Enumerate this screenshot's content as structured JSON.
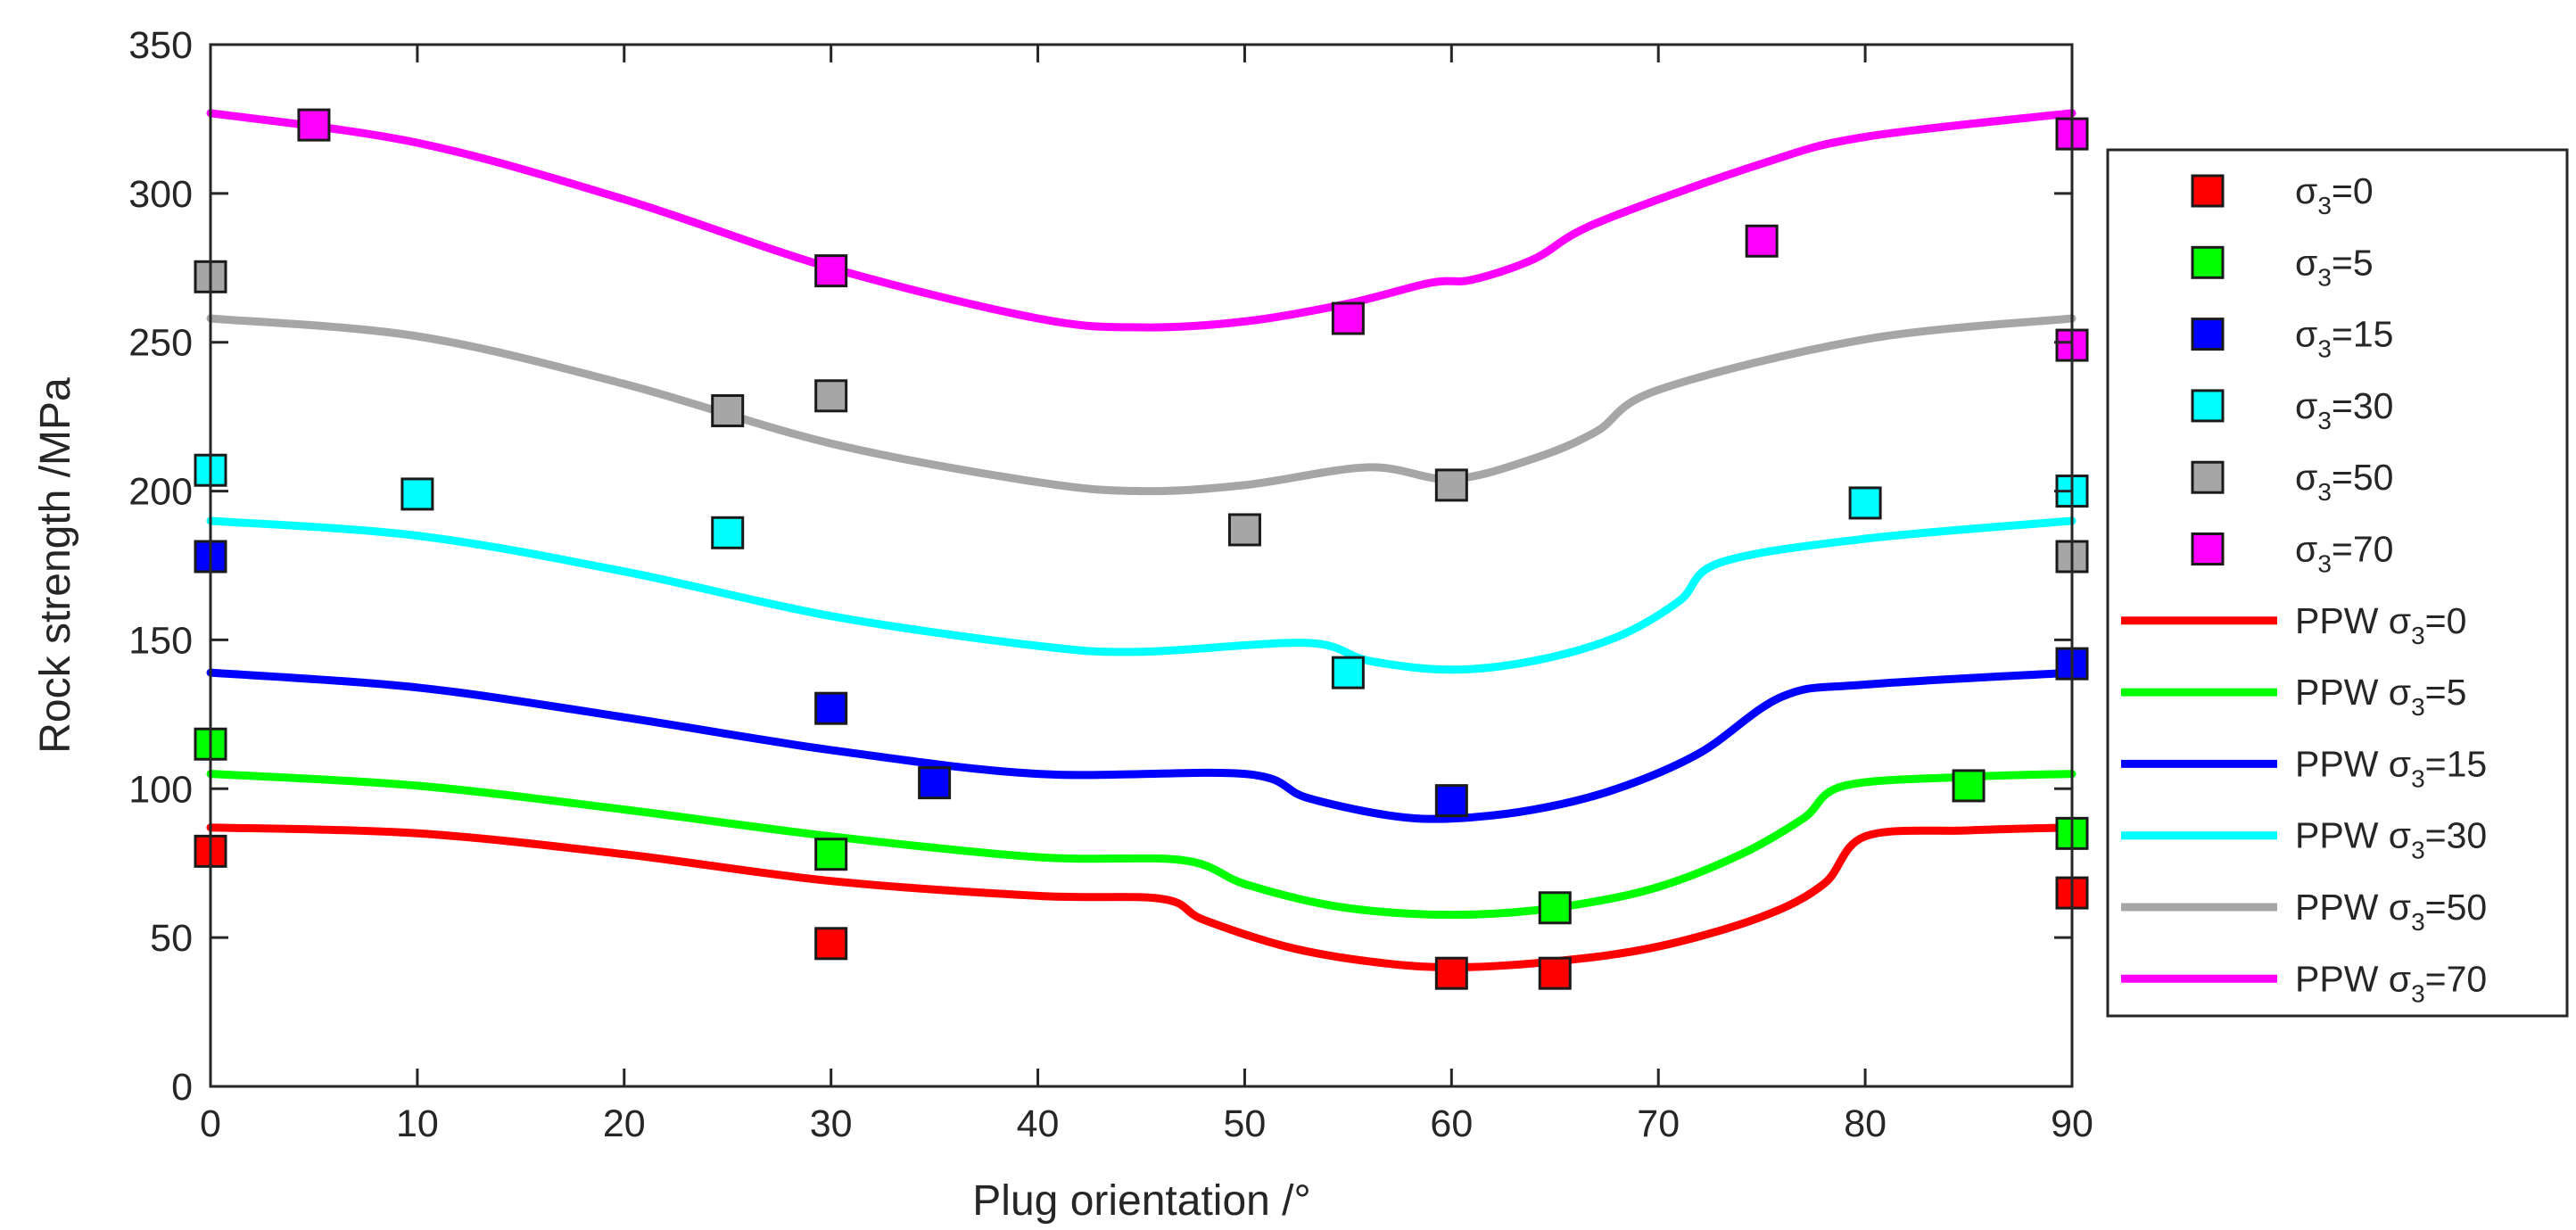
{
  "chart_data": {
    "type": "scatter+line",
    "xlabel": "Plug orientation /°",
    "ylabel": "Rock strength /MPa",
    "xlim": [
      0,
      90
    ],
    "ylim": [
      0,
      350
    ],
    "xticks": [
      0,
      10,
      20,
      30,
      40,
      50,
      60,
      70,
      80,
      90
    ],
    "yticks": [
      0,
      50,
      100,
      150,
      200,
      250,
      300,
      350
    ],
    "grid": false,
    "legend_position": "right-outside",
    "scatter_series": [
      {
        "name": "σ3=0",
        "legend_base": "σ",
        "legend_sub": "3",
        "legend_tail": "=0",
        "color": "#ff0000",
        "points": [
          [
            0,
            79
          ],
          [
            30,
            48
          ],
          [
            60,
            38
          ],
          [
            65,
            38
          ],
          [
            90,
            65
          ]
        ]
      },
      {
        "name": "σ3=5",
        "legend_base": "σ",
        "legend_sub": "3",
        "legend_tail": "=5",
        "color": "#00ff00",
        "points": [
          [
            0,
            115
          ],
          [
            30,
            78
          ],
          [
            65,
            60
          ],
          [
            85,
            101
          ],
          [
            90,
            85
          ]
        ]
      },
      {
        "name": "σ3=15",
        "legend_base": "σ",
        "legend_sub": "3",
        "legend_tail": "=15",
        "color": "#0000ff",
        "points": [
          [
            0,
            178
          ],
          [
            30,
            127
          ],
          [
            35,
            102
          ],
          [
            60,
            96
          ],
          [
            90,
            142
          ]
        ]
      },
      {
        "name": "σ3=30",
        "legend_base": "σ",
        "legend_sub": "3",
        "legend_tail": "=30",
        "color": "#00ffff",
        "points": [
          [
            0,
            207
          ],
          [
            10,
            199
          ],
          [
            25,
            186
          ],
          [
            55,
            139
          ],
          [
            80,
            196
          ],
          [
            90,
            200
          ]
        ]
      },
      {
        "name": "σ3=50",
        "legend_base": "σ",
        "legend_sub": "3",
        "legend_tail": "=50",
        "color": "#a6a6a6",
        "points": [
          [
            0,
            272
          ],
          [
            25,
            227
          ],
          [
            30,
            232
          ],
          [
            50,
            187
          ],
          [
            60,
            202
          ],
          [
            90,
            178
          ]
        ]
      },
      {
        "name": "σ3=70",
        "legend_base": "σ",
        "legend_sub": "3",
        "legend_tail": "=70",
        "color": "#ff00ff",
        "points": [
          [
            5,
            323
          ],
          [
            30,
            274
          ],
          [
            55,
            258
          ],
          [
            75,
            284
          ],
          [
            90,
            320
          ],
          [
            90,
            249
          ]
        ]
      }
    ],
    "line_series": [
      {
        "name": "PPW σ3=0",
        "legend_base": "PPW σ",
        "legend_sub": "3",
        "legend_tail": "=0",
        "color": "#ff0000",
        "points": [
          [
            0,
            87
          ],
          [
            10,
            85
          ],
          [
            20,
            78
          ],
          [
            30,
            69
          ],
          [
            40,
            64
          ],
          [
            46,
            63
          ],
          [
            48,
            56
          ],
          [
            52,
            47
          ],
          [
            56,
            42
          ],
          [
            60,
            40
          ],
          [
            65,
            42
          ],
          [
            70,
            47
          ],
          [
            75,
            57
          ],
          [
            78,
            68
          ],
          [
            80,
            84
          ],
          [
            85,
            86
          ],
          [
            90,
            87
          ]
        ]
      },
      {
        "name": "PPW σ3=5",
        "legend_base": "PPW σ",
        "legend_sub": "3",
        "legend_tail": "=5",
        "color": "#00ff00",
        "points": [
          [
            0,
            105
          ],
          [
            10,
            101
          ],
          [
            20,
            93
          ],
          [
            30,
            84
          ],
          [
            40,
            77
          ],
          [
            47,
            76
          ],
          [
            50,
            68
          ],
          [
            54,
            61
          ],
          [
            58,
            58
          ],
          [
            62,
            58
          ],
          [
            66,
            61
          ],
          [
            70,
            67
          ],
          [
            74,
            78
          ],
          [
            77,
            90
          ],
          [
            79,
            101
          ],
          [
            85,
            104
          ],
          [
            90,
            105
          ]
        ]
      },
      {
        "name": "PPW σ3=15",
        "legend_base": "PPW σ",
        "legend_sub": "3",
        "legend_tail": "=15",
        "color": "#0000ff",
        "points": [
          [
            0,
            139
          ],
          [
            10,
            134
          ],
          [
            20,
            124
          ],
          [
            30,
            113
          ],
          [
            40,
            105
          ],
          [
            50,
            105
          ],
          [
            53,
            97
          ],
          [
            57,
            91
          ],
          [
            60,
            90
          ],
          [
            64,
            93
          ],
          [
            68,
            100
          ],
          [
            72,
            112
          ],
          [
            76,
            131
          ],
          [
            80,
            135
          ],
          [
            90,
            139
          ]
        ]
      },
      {
        "name": "PPW σ3=30",
        "legend_base": "PPW σ",
        "legend_sub": "3",
        "legend_tail": "=30",
        "color": "#00ffff",
        "points": [
          [
            0,
            190
          ],
          [
            10,
            185
          ],
          [
            20,
            173
          ],
          [
            30,
            158
          ],
          [
            40,
            148
          ],
          [
            45,
            146
          ],
          [
            53,
            149
          ],
          [
            56,
            143
          ],
          [
            60,
            140
          ],
          [
            64,
            143
          ],
          [
            68,
            151
          ],
          [
            71,
            163
          ],
          [
            73,
            176
          ],
          [
            80,
            184
          ],
          [
            90,
            190
          ]
        ]
      },
      {
        "name": "PPW σ3=50",
        "legend_base": "PPW σ",
        "legend_sub": "3",
        "legend_tail": "=50",
        "color": "#a6a6a6",
        "points": [
          [
            0,
            258
          ],
          [
            10,
            252
          ],
          [
            20,
            236
          ],
          [
            30,
            216
          ],
          [
            40,
            203
          ],
          [
            45,
            200
          ],
          [
            50,
            202
          ],
          [
            56,
            208
          ],
          [
            60,
            204
          ],
          [
            64,
            211
          ],
          [
            67,
            220
          ],
          [
            70,
            234
          ],
          [
            80,
            251
          ],
          [
            90,
            258
          ]
        ]
      },
      {
        "name": "PPW σ3=70",
        "legend_base": "PPW σ",
        "legend_sub": "3",
        "legend_tail": "=70",
        "color": "#ff00ff",
        "points": [
          [
            0,
            327
          ],
          [
            10,
            317
          ],
          [
            20,
            298
          ],
          [
            30,
            275
          ],
          [
            40,
            258
          ],
          [
            45,
            255
          ],
          [
            50,
            257
          ],
          [
            55,
            263
          ],
          [
            59,
            270
          ],
          [
            61,
            271
          ],
          [
            64,
            278
          ],
          [
            67,
            290
          ],
          [
            75,
            310
          ],
          [
            80,
            319
          ],
          [
            90,
            327
          ]
        ]
      }
    ]
  }
}
